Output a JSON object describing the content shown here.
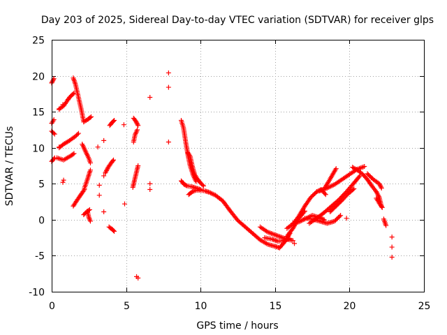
{
  "chart_data": {
    "type": "scatter",
    "title": "Day 203 of 2025, Sidereal Day-to-day VTEC variation (SDTVAR) for receiver glps",
    "xlabel": "GPS time / hours",
    "ylabel": "SDTVAR / TECUs",
    "xlim": [
      0,
      25
    ],
    "ylim": [
      -10,
      25
    ],
    "xticks": [
      0,
      5,
      10,
      15,
      20,
      25
    ],
    "yticks": [
      -10,
      -5,
      0,
      5,
      10,
      15,
      20,
      25
    ],
    "grid": true,
    "marker": "+",
    "color": "#ff0000",
    "series": [
      {
        "name": "SDTVAR",
        "segments": [
          {
            "x": [
              0.0,
              0.15
            ],
            "y": [
              19.0,
              19.6
            ]
          },
          {
            "x": [
              0.0,
              0.15
            ],
            "y": [
              13.4,
              13.9
            ]
          },
          {
            "x": [
              0.0,
              0.2
            ],
            "y": [
              12.3,
              11.9
            ]
          },
          {
            "x": [
              0.0,
              0.2
            ],
            "y": [
              8.1,
              8.6
            ]
          },
          {
            "x": [
              0.35,
              0.8,
              1.3,
              1.5
            ],
            "y": [
              8.6,
              8.3,
              8.9,
              9.2
            ]
          },
          {
            "x": [
              0.5,
              0.8,
              1.2,
              1.5
            ],
            "y": [
              15.4,
              15.8,
              17.0,
              17.6
            ]
          },
          {
            "x": [
              0.5,
              0.8,
              1.2,
              1.6,
              1.8
            ],
            "y": [
              10.0,
              10.5,
              11.0,
              11.6,
              12.0
            ]
          },
          {
            "x": [
              1.45,
              1.6,
              1.8,
              2.0,
              2.15
            ],
            "y": [
              19.7,
              18.8,
              17.0,
              15.2,
              13.6
            ]
          },
          {
            "x": [
              2.15,
              2.4,
              2.65
            ],
            "y": [
              13.6,
              13.9,
              14.3
            ]
          },
          {
            "x": [
              1.45,
              1.7,
              2.0,
              2.2
            ],
            "y": [
              1.9,
              2.7,
              3.6,
              4.2
            ]
          },
          {
            "x": [
              2.05,
              2.25,
              2.5,
              2.6
            ],
            "y": [
              10.5,
              9.6,
              8.5,
              7.9
            ]
          },
          {
            "x": [
              2.2,
              2.4,
              2.6
            ],
            "y": [
              4.4,
              5.6,
              6.9
            ]
          },
          {
            "x": [
              2.15,
              2.35,
              2.55
            ],
            "y": [
              0.7,
              1.1,
              1.4
            ]
          },
          {
            "x": [
              2.4,
              2.5,
              2.6
            ],
            "y": [
              1.2,
              0.3,
              -0.2
            ]
          },
          {
            "x": [
              3.6,
              3.8,
              4.0,
              4.15
            ],
            "y": [
              6.5,
              7.3,
              7.9,
              8.3
            ]
          },
          {
            "x": [
              3.9,
              4.05,
              4.2
            ],
            "y": [
              13.1,
              13.5,
              13.8
            ]
          },
          {
            "x": [
              3.85,
              4.05,
              4.2
            ],
            "y": [
              -1.0,
              -1.3,
              -1.6
            ]
          },
          {
            "x": [
              5.5,
              5.65,
              5.8
            ],
            "y": [
              14.1,
              13.7,
              13.1
            ]
          },
          {
            "x": [
              5.5,
              5.6,
              5.75
            ],
            "y": [
              10.8,
              11.8,
              12.5
            ]
          },
          {
            "x": [
              5.45,
              5.6,
              5.8
            ],
            "y": [
              4.5,
              5.8,
              7.5
            ]
          },
          {
            "x": [
              8.7,
              8.85,
              9.0,
              9.15,
              9.3,
              9.5,
              9.7
            ],
            "y": [
              13.8,
              12.8,
              10.8,
              9.0,
              7.5,
              6.2,
              5.3
            ]
          },
          {
            "x": [
              8.7,
              8.9,
              9.1,
              9.4,
              9.7,
              10.0
            ],
            "y": [
              5.4,
              4.9,
              4.7,
              4.6,
              4.4,
              4.2
            ]
          },
          {
            "x": [
              9.15,
              9.3,
              9.45,
              9.6,
              9.8,
              10.0,
              10.2
            ],
            "y": [
              9.3,
              8.8,
              7.4,
              6.3,
              5.6,
              5.1,
              4.7
            ]
          },
          {
            "x": [
              9.2,
              9.45,
              9.7,
              10.0,
              10.3,
              10.6,
              11.0,
              11.5,
              12.0,
              12.5,
              13.0,
              13.5,
              14.0,
              14.5,
              15.0,
              15.3
            ],
            "y": [
              3.5,
              3.9,
              4.1,
              4.1,
              4.0,
              3.8,
              3.4,
              2.6,
              1.2,
              -0.1,
              -1.0,
              -1.9,
              -2.8,
              -3.4,
              -3.7,
              -3.9
            ]
          },
          {
            "x": [
              15.3,
              15.6,
              16.0
            ],
            "y": [
              -3.9,
              -3.2,
              -1.9
            ]
          },
          {
            "x": [
              14.0,
              14.5,
              15.0,
              15.4,
              15.8,
              16.2
            ],
            "y": [
              -1.0,
              -1.7,
              -2.1,
              -2.4,
              -2.7,
              -2.9
            ]
          },
          {
            "x": [
              14.3,
              14.8,
              15.2,
              15.6,
              16.0
            ],
            "y": [
              -2.5,
              -2.7,
              -3.0,
              -2.9,
              -2.6
            ]
          },
          {
            "x": [
              15.8,
              16.2,
              16.6,
              17.0,
              17.4,
              17.8
            ],
            "y": [
              -1.2,
              -0.6,
              0.5,
              1.9,
              3.1,
              3.9
            ]
          },
          {
            "x": [
              17.8,
              18.1,
              18.4
            ],
            "y": [
              3.9,
              4.2,
              3.5
            ]
          },
          {
            "x": [
              15.8,
              16.2,
              16.6,
              17.0
            ],
            "y": [
              -2.3,
              -1.2,
              0.2,
              1.2
            ]
          },
          {
            "x": [
              16.2,
              16.6,
              17.0,
              17.5,
              18.0,
              18.3
            ],
            "y": [
              -0.5,
              -0.3,
              0.1,
              0.6,
              0.3,
              0.0
            ]
          },
          {
            "x": [
              17.0,
              17.5,
              18.0,
              18.5,
              19.0,
              19.4
            ],
            "y": [
              0.2,
              0.1,
              -0.2,
              -0.5,
              -0.2,
              0.6
            ]
          },
          {
            "x": [
              17.3,
              17.8,
              18.3,
              18.8,
              19.3,
              19.8,
              20.3,
              20.7
            ],
            "y": [
              -0.5,
              0.2,
              1.0,
              1.9,
              2.8,
              3.9,
              5.1,
              6.1
            ]
          },
          {
            "x": [
              18.0,
              18.5,
              19.0,
              19.5,
              20.0,
              20.5,
              21.0
            ],
            "y": [
              4.0,
              4.4,
              4.9,
              5.6,
              6.3,
              7.0,
              7.4
            ]
          },
          {
            "x": [
              18.3,
              18.6,
              18.9,
              19.1
            ],
            "y": [
              4.3,
              5.3,
              6.4,
              7.1
            ]
          },
          {
            "x": [
              18.7,
              19.1,
              19.5,
              19.9,
              20.3
            ],
            "y": [
              1.1,
              1.9,
              2.7,
              3.6,
              4.3
            ]
          },
          {
            "x": [
              20.2,
              20.6,
              20.9,
              21.2,
              21.5,
              21.8,
              22.0,
              22.15
            ],
            "y": [
              7.3,
              6.8,
              6.3,
              5.6,
              4.7,
              3.9,
              3.1,
              1.8
            ]
          },
          {
            "x": [
              21.2,
              21.6,
              22.0,
              22.15
            ],
            "y": [
              6.4,
              5.6,
              5.0,
              4.4
            ]
          },
          {
            "x": [
              21.8,
              22.0,
              22.2
            ],
            "y": [
              3.0,
              2.3,
              1.7
            ]
          },
          {
            "x": [
              22.3,
              22.45
            ],
            "y": [
              0.1,
              -0.8
            ]
          }
        ],
        "points": [
          {
            "x": 0.5,
            "y": 10.1
          },
          {
            "x": 0.5,
            "y": 15.3
          },
          {
            "x": 0.75,
            "y": 5.2
          },
          {
            "x": 0.8,
            "y": 5.5
          },
          {
            "x": 0.75,
            "y": 16.0
          },
          {
            "x": 1.1,
            "y": 16.7
          },
          {
            "x": 3.1,
            "y": 10.1
          },
          {
            "x": 3.2,
            "y": 4.8
          },
          {
            "x": 3.2,
            "y": 3.4
          },
          {
            "x": 3.5,
            "y": 6.1
          },
          {
            "x": 3.5,
            "y": 11.0
          },
          {
            "x": 3.5,
            "y": 1.1
          },
          {
            "x": 4.85,
            "y": 13.2
          },
          {
            "x": 4.9,
            "y": 2.2
          },
          {
            "x": 5.7,
            "y": -7.9
          },
          {
            "x": 5.8,
            "y": -8.1
          },
          {
            "x": 6.6,
            "y": 5.0
          },
          {
            "x": 6.6,
            "y": 4.2
          },
          {
            "x": 6.6,
            "y": 17.0
          },
          {
            "x": 7.85,
            "y": 20.4
          },
          {
            "x": 7.85,
            "y": 18.4
          },
          {
            "x": 7.85,
            "y": 10.8
          },
          {
            "x": 16.3,
            "y": -3.3
          },
          {
            "x": 19.8,
            "y": 0.2
          },
          {
            "x": 22.85,
            "y": -2.4
          },
          {
            "x": 22.85,
            "y": -3.8
          },
          {
            "x": 22.85,
            "y": -5.2
          }
        ]
      }
    ]
  }
}
